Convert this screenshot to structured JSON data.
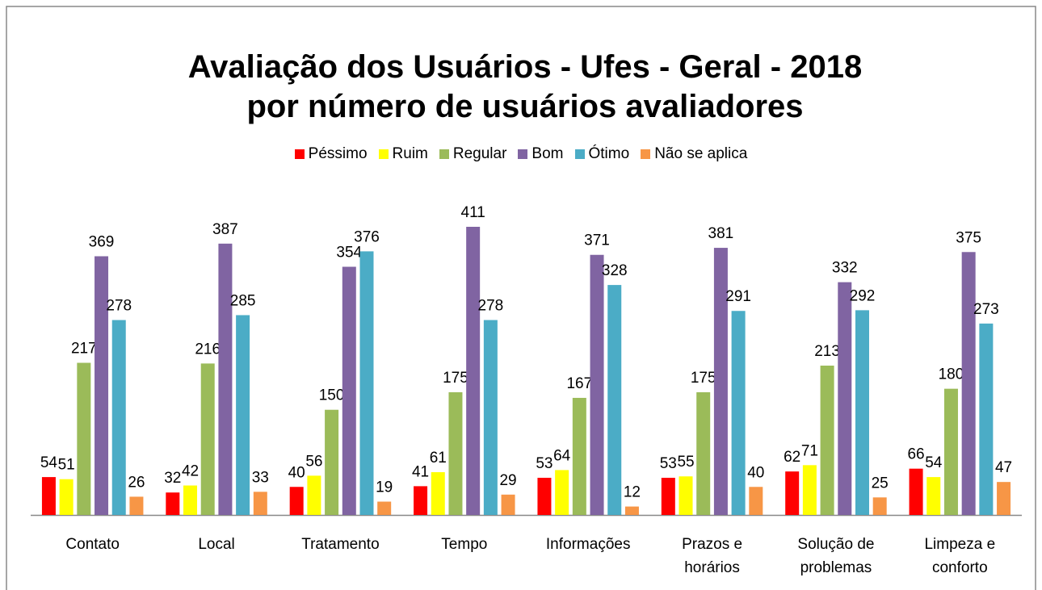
{
  "chart_data": {
    "type": "bar",
    "title": "Avaliação dos Usuários - Ufes - Geral - 2018",
    "subtitle": "por número de usuários avaliadores",
    "categories": [
      "Contato",
      "Local",
      "Tratamento",
      "Tempo",
      "Informações",
      "Prazos e horários",
      "Solução de problemas",
      "Limpeza e conforto"
    ],
    "legend": "top",
    "series": [
      {
        "name": "Péssimo",
        "color": "#ff0000",
        "values": [
          54,
          32,
          40,
          41,
          53,
          53,
          62,
          66
        ]
      },
      {
        "name": "Ruim",
        "color": "#ffff00",
        "values": [
          51,
          42,
          56,
          61,
          64,
          55,
          71,
          54
        ]
      },
      {
        "name": "Regular",
        "color": "#9bbb59",
        "values": [
          217,
          216,
          150,
          175,
          167,
          175,
          213,
          180
        ]
      },
      {
        "name": "Bom",
        "color": "#8064a2",
        "values": [
          369,
          387,
          354,
          411,
          371,
          381,
          332,
          375
        ]
      },
      {
        "name": "Ótimo",
        "color": "#4bacc6",
        "values": [
          278,
          285,
          376,
          278,
          328,
          291,
          292,
          273
        ]
      },
      {
        "name": "Não se aplica",
        "color": "#f79646",
        "values": [
          26,
          33,
          19,
          29,
          12,
          40,
          25,
          47
        ]
      }
    ]
  }
}
